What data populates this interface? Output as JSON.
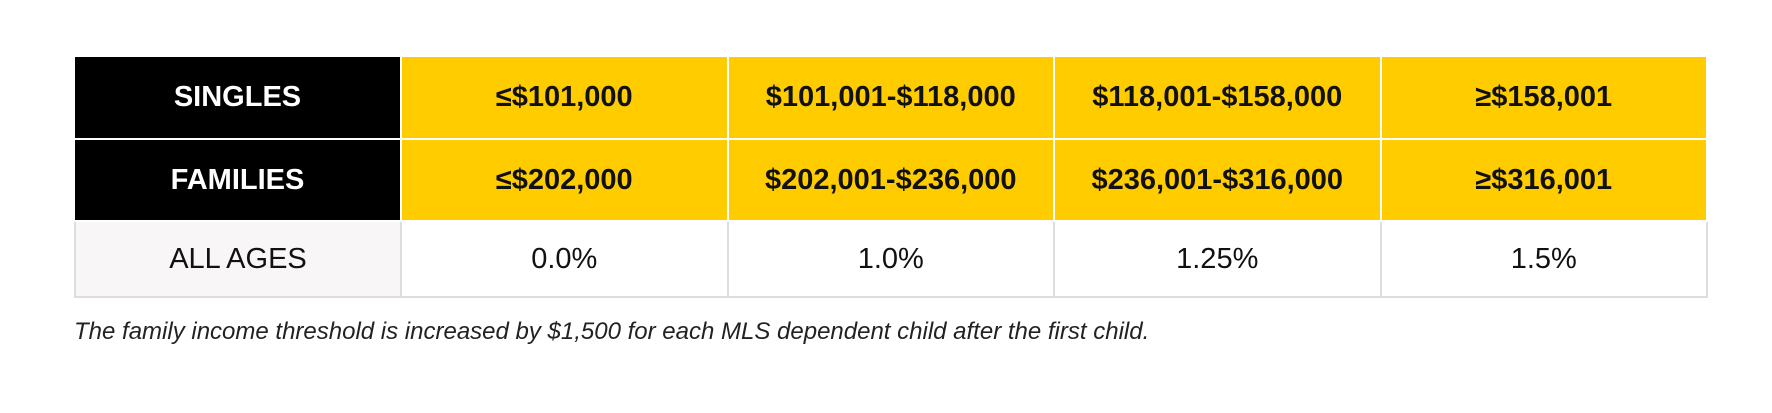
{
  "table": {
    "rows": [
      {
        "header": "SINGLES",
        "cells": [
          "≤$101,000",
          "$101,001-$118,000",
          "$118,001-$158,000",
          "≥$158,001"
        ]
      },
      {
        "header": "FAMILIES",
        "cells": [
          "≤$202,000",
          "$202,001-$236,000",
          "$236,001-$316,000",
          "≥$316,001"
        ]
      },
      {
        "header": "ALL AGES",
        "cells": [
          "0.0%",
          "1.0%",
          "1.25%",
          "1.5%"
        ]
      }
    ]
  },
  "footnote": "The family income threshold is increased by $1,500 for each MLS dependent child after the first child.",
  "colors": {
    "accent": "#FFCC00",
    "header_bg": "#000000",
    "header_text": "#FFFFFF"
  }
}
